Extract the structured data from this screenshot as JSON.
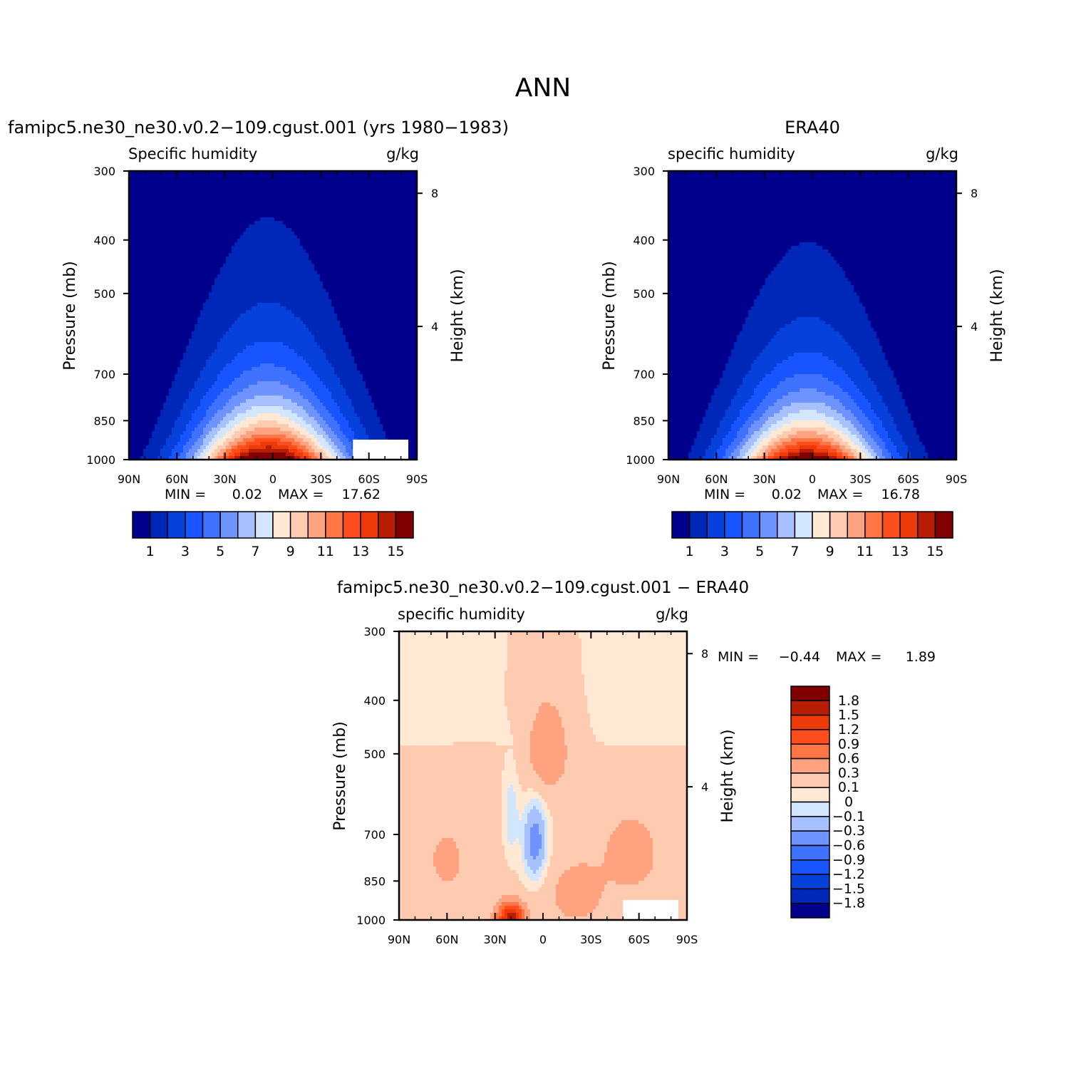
{
  "figure": {
    "title": "ANN"
  },
  "colors": {
    "seq": [
      "#00008c",
      "#0028b8",
      "#0641dc",
      "#1955ff",
      "#3f73ff",
      "#6e93ff",
      "#a7c0ff",
      "#d2e6ff",
      "#ffe8d4",
      "#ffcbb0",
      "#ffa27f",
      "#ff7646",
      "#ff4e1d",
      "#ec3a09",
      "#b71d05",
      "#800000"
    ],
    "div": [
      "#00008c",
      "#0028b8",
      "#0641dc",
      "#1955ff",
      "#3f73ff",
      "#6e93ff",
      "#a7c0ff",
      "#d2e6ff",
      "#ffe8d4",
      "#ffcbb0",
      "#ffa27f",
      "#ff7646",
      "#ff4e1d",
      "#ec3a09",
      "#b71d05",
      "#800000"
    ]
  },
  "chart_data": [
    {
      "type": "heatmap",
      "title": "famipc5.ne30_ne30.v0.2−109.cgust.001 (yrs 1980−1983)",
      "subtitle_left": "Specific humidity",
      "subtitle_right": "g/kg",
      "xlabel": "",
      "ylabel": "Pressure (mb)",
      "ylabel_right": "Height (km)",
      "x_ticks": [
        "90N",
        "60N",
        "30N",
        "0",
        "30S",
        "60S",
        "90S"
      ],
      "y_ticks": [
        "300",
        "400",
        "500",
        "700",
        "850",
        "1000"
      ],
      "y_right_ticks": [
        "8",
        "4"
      ],
      "ylim": [
        1000,
        300
      ],
      "stats": {
        "min_label": "MIN =",
        "min": "0.02",
        "max_label": "MAX =",
        "max": "17.62"
      },
      "colorbar": {
        "labels": [
          "1",
          "3",
          "5",
          "7",
          "9",
          "11",
          "13",
          "15"
        ]
      },
      "field": {
        "kind": "humidity",
        "peak": 17.62,
        "halfwidth": 0.52,
        "scale_height": 0.22,
        "skew": 0.0,
        "missing_region": "60S-90S below 900mb"
      }
    },
    {
      "type": "heatmap",
      "title": "ERA40",
      "subtitle_left": "specific humidity",
      "subtitle_right": "g/kg",
      "xlabel": "",
      "ylabel": "Pressure (mb)",
      "ylabel_right": "Height (km)",
      "x_ticks": [
        "90N",
        "60N",
        "30N",
        "0",
        "30S",
        "60S",
        "90S"
      ],
      "y_ticks": [
        "300",
        "400",
        "500",
        "700",
        "850",
        "1000"
      ],
      "y_right_ticks": [
        "8",
        "4"
      ],
      "ylim": [
        1000,
        300
      ],
      "stats": {
        "min_label": "MIN =",
        "min": "0.02",
        "max_label": "MAX =",
        "max": "16.78"
      },
      "colorbar": {
        "labels": [
          "1",
          "3",
          "5",
          "7",
          "9",
          "11",
          "13",
          "15"
        ]
      },
      "field": {
        "kind": "humidity",
        "peak": 16.78,
        "halfwidth": 0.5,
        "scale_height": 0.21,
        "skew": 0.0
      }
    },
    {
      "type": "heatmap",
      "title": "famipc5.ne30_ne30.v0.2−109.cgust.001 − ERA40",
      "subtitle_left": "specific humidity",
      "subtitle_right": "g/kg",
      "xlabel": "",
      "ylabel": "Pressure (mb)",
      "ylabel_right": "Height (km)",
      "x_ticks": [
        "90N",
        "60N",
        "30N",
        "0",
        "30S",
        "60S",
        "90S"
      ],
      "y_ticks": [
        "300",
        "400",
        "500",
        "700",
        "850",
        "1000"
      ],
      "y_right_ticks": [
        "8",
        "4"
      ],
      "ylim": [
        1000,
        300
      ],
      "stats": {
        "min_label": "MIN =",
        "min": "−0.44",
        "max_label": "MAX =",
        "max": "1.89"
      },
      "colorbar": {
        "labels": [
          "1.8",
          "1.5",
          "1.2",
          "0.9",
          "0.6",
          "0.3",
          "0.1",
          "0",
          "−0.1",
          "−0.3",
          "−0.6",
          "−0.9",
          "−1.2",
          "−1.5",
          "−1.8"
        ]
      },
      "field": {
        "kind": "difference",
        "missing_region": "60S-90S below 900mb"
      }
    }
  ]
}
